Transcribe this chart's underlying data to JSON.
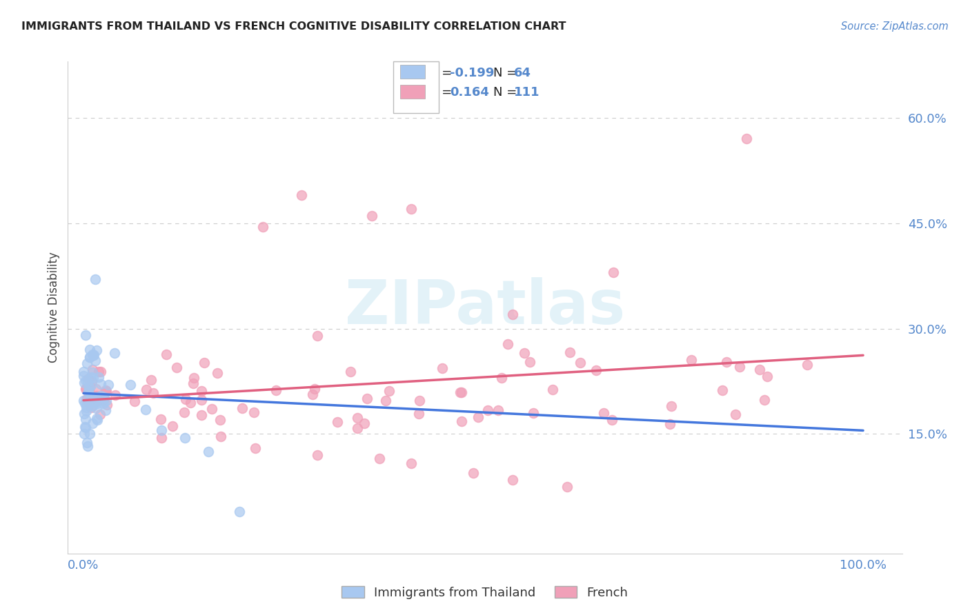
{
  "title": "IMMIGRANTS FROM THAILAND VS FRENCH COGNITIVE DISABILITY CORRELATION CHART",
  "source": "Source: ZipAtlas.com",
  "ylabel": "Cognitive Disability",
  "xlim": [
    -0.02,
    1.05
  ],
  "ylim": [
    -0.02,
    0.68
  ],
  "xtick_positions": [
    0.0,
    1.0
  ],
  "xtick_labels": [
    "0.0%",
    "100.0%"
  ],
  "ytick_positions": [
    0.15,
    0.3,
    0.45,
    0.6
  ],
  "ytick_labels": [
    "15.0%",
    "30.0%",
    "45.0%",
    "60.0%"
  ],
  "grid_color": "#cccccc",
  "background_color": "#ffffff",
  "blue_marker_color": "#a8c8f0",
  "blue_line_color": "#4477dd",
  "pink_marker_color": "#f0a0b8",
  "pink_line_color": "#e06080",
  "tick_color": "#5588cc",
  "title_color": "#222222",
  "ylabel_color": "#444444",
  "legend_blue_label": "Immigrants from Thailand",
  "legend_pink_label": "French",
  "R_blue": "-0.199",
  "N_blue": "64",
  "R_pink": "0.164",
  "N_pink": "111",
  "watermark_color": "#cce8f4",
  "watermark_alpha": 0.55,
  "blue_line_start_y": 0.208,
  "blue_line_end_y": 0.155,
  "pink_line_start_y": 0.198,
  "pink_line_end_y": 0.262
}
